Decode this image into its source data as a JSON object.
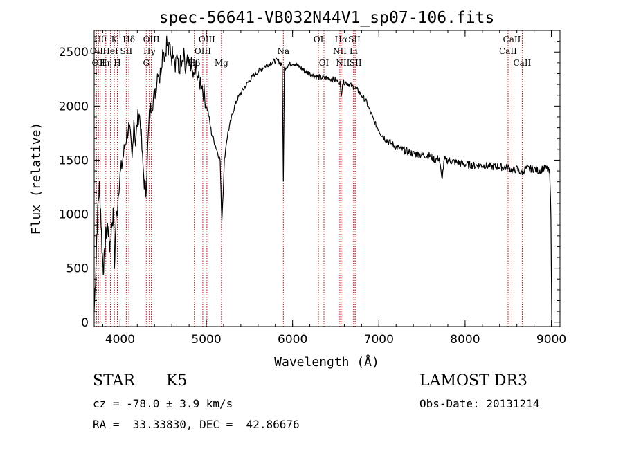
{
  "chart_data": {
    "type": "line",
    "title": "spec-56641-VB032N44V1_sp07-106.fits",
    "xlabel": "Wavelength (Å)",
    "ylabel": "Flux (relative)",
    "xlim": [
      3700,
      9100
    ],
    "ylim": [
      -40,
      2700
    ],
    "x_ticks": [
      4000,
      5000,
      6000,
      7000,
      8000,
      9000
    ],
    "y_ticks": [
      0,
      500,
      1000,
      1500,
      2000,
      2500
    ],
    "series": [
      {
        "name": "flux",
        "points": [
          [
            3700,
            100
          ],
          [
            3715,
            400
          ],
          [
            3730,
            800
          ],
          [
            3745,
            1100
          ],
          [
            3760,
            1250
          ],
          [
            3775,
            1050
          ],
          [
            3790,
            700
          ],
          [
            3805,
            500
          ],
          [
            3820,
            600
          ],
          [
            3835,
            800
          ],
          [
            3850,
            900
          ],
          [
            3865,
            850
          ],
          [
            3880,
            700
          ],
          [
            3895,
            820
          ],
          [
            3910,
            950
          ],
          [
            3925,
            1000
          ],
          [
            3935,
            500
          ],
          [
            3950,
            900
          ],
          [
            3968,
            1050
          ],
          [
            3985,
            1250
          ],
          [
            4000,
            1350
          ],
          [
            4020,
            1450
          ],
          [
            4040,
            1550
          ],
          [
            4060,
            1650
          ],
          [
            4080,
            1750
          ],
          [
            4100,
            1800
          ],
          [
            4120,
            1700
          ],
          [
            4140,
            1500
          ],
          [
            4160,
            1900
          ],
          [
            4180,
            1650
          ],
          [
            4200,
            1850
          ],
          [
            4220,
            1950
          ],
          [
            4240,
            1800
          ],
          [
            4260,
            1500
          ],
          [
            4280,
            1300
          ],
          [
            4300,
            1200
          ],
          [
            4320,
            1600
          ],
          [
            4340,
            1900
          ],
          [
            4360,
            2000
          ],
          [
            4380,
            2050
          ],
          [
            4400,
            2100
          ],
          [
            4420,
            2200
          ],
          [
            4440,
            2350
          ],
          [
            4460,
            2250
          ],
          [
            4480,
            2400
          ],
          [
            4500,
            2550
          ],
          [
            4520,
            2450
          ],
          [
            4540,
            2600
          ],
          [
            4560,
            2500
          ],
          [
            4580,
            2550
          ],
          [
            4600,
            2450
          ],
          [
            4620,
            2550
          ],
          [
            4640,
            2400
          ],
          [
            4660,
            2500
          ],
          [
            4680,
            2300
          ],
          [
            4700,
            2400
          ],
          [
            4720,
            2350
          ],
          [
            4740,
            2450
          ],
          [
            4760,
            2300
          ],
          [
            4780,
            2400
          ],
          [
            4800,
            2350
          ],
          [
            4820,
            2400
          ],
          [
            4840,
            2300
          ],
          [
            4860,
            2250
          ],
          [
            4880,
            2350
          ],
          [
            4900,
            2300
          ],
          [
            4920,
            2200
          ],
          [
            4940,
            2250
          ],
          [
            4960,
            2150
          ],
          [
            4980,
            2100
          ],
          [
            5000,
            2000
          ],
          [
            5020,
            1950
          ],
          [
            5040,
            1850
          ],
          [
            5060,
            1750
          ],
          [
            5080,
            1700
          ],
          [
            5100,
            1650
          ],
          [
            5120,
            1600
          ],
          [
            5140,
            1550
          ],
          [
            5160,
            1500
          ],
          [
            5170,
            1200
          ],
          [
            5180,
            950
          ],
          [
            5195,
            1200
          ],
          [
            5210,
            1500
          ],
          [
            5230,
            1650
          ],
          [
            5250,
            1750
          ],
          [
            5280,
            1850
          ],
          [
            5310,
            1950
          ],
          [
            5350,
            2050
          ],
          [
            5400,
            2120
          ],
          [
            5450,
            2180
          ],
          [
            5500,
            2240
          ],
          [
            5550,
            2280
          ],
          [
            5600,
            2320
          ],
          [
            5650,
            2350
          ],
          [
            5700,
            2380
          ],
          [
            5750,
            2400
          ],
          [
            5800,
            2420
          ],
          [
            5850,
            2410
          ],
          [
            5880,
            2380
          ],
          [
            5893,
            1300
          ],
          [
            5905,
            2350
          ],
          [
            5950,
            2380
          ],
          [
            6000,
            2400
          ],
          [
            6050,
            2380
          ],
          [
            6100,
            2350
          ],
          [
            6150,
            2320
          ],
          [
            6200,
            2300
          ],
          [
            6250,
            2280
          ],
          [
            6300,
            2270
          ],
          [
            6350,
            2260
          ],
          [
            6400,
            2260
          ],
          [
            6450,
            2250
          ],
          [
            6500,
            2240
          ],
          [
            6550,
            2220
          ],
          [
            6563,
            2080
          ],
          [
            6580,
            2220
          ],
          [
            6620,
            2220
          ],
          [
            6660,
            2200
          ],
          [
            6700,
            2180
          ],
          [
            6750,
            2150
          ],
          [
            6800,
            2100
          ],
          [
            6850,
            2050
          ],
          [
            6900,
            1950
          ],
          [
            6950,
            1850
          ],
          [
            7000,
            1780
          ],
          [
            7050,
            1720
          ],
          [
            7100,
            1680
          ],
          [
            7150,
            1650
          ],
          [
            7200,
            1620
          ],
          [
            7300,
            1590
          ],
          [
            7400,
            1560
          ],
          [
            7500,
            1550
          ],
          [
            7600,
            1540
          ],
          [
            7650,
            1500
          ],
          [
            7700,
            1520
          ],
          [
            7730,
            1320
          ],
          [
            7760,
            1500
          ],
          [
            7800,
            1500
          ],
          [
            7900,
            1480
          ],
          [
            8000,
            1460
          ],
          [
            8100,
            1450
          ],
          [
            8200,
            1450
          ],
          [
            8300,
            1440
          ],
          [
            8400,
            1440
          ],
          [
            8500,
            1430
          ],
          [
            8550,
            1400
          ],
          [
            8600,
            1420
          ],
          [
            8650,
            1380
          ],
          [
            8700,
            1420
          ],
          [
            8800,
            1420
          ],
          [
            8850,
            1400
          ],
          [
            8900,
            1420
          ],
          [
            8950,
            1420
          ],
          [
            8980,
            1380
          ],
          [
            8995,
            1000
          ],
          [
            9000,
            500
          ],
          [
            9005,
            -20
          ]
        ]
      }
    ],
    "line_markers": [
      {
        "wavelength": 3727,
        "label": "OII",
        "row": 1
      },
      {
        "wavelength": 3750,
        "label": "OII",
        "row": 2
      },
      {
        "wavelength": 3770,
        "label": "Hθ",
        "row": 0
      },
      {
        "wavelength": 3835,
        "label": "Hη",
        "row": 2
      },
      {
        "wavelength": 3889,
        "label": "HeI",
        "row": 1
      },
      {
        "wavelength": 3934,
        "label": "K",
        "row": 0
      },
      {
        "wavelength": 3969,
        "label": "H",
        "row": 2
      },
      {
        "wavelength": 4072,
        "label": "SII",
        "row": 1
      },
      {
        "wavelength": 4102,
        "label": "Hδ",
        "row": 0
      },
      {
        "wavelength": 4304,
        "label": "G",
        "row": 2
      },
      {
        "wavelength": 4340,
        "label": "Hγ",
        "row": 1
      },
      {
        "wavelength": 4363,
        "label": "OIII",
        "row": 0
      },
      {
        "wavelength": 4861,
        "label": "Hβ",
        "row": 2
      },
      {
        "wavelength": 4959,
        "label": "OIII",
        "row": 1
      },
      {
        "wavelength": 5007,
        "label": "OIII",
        "row": 0
      },
      {
        "wavelength": 5175,
        "label": "Mg",
        "row": 2
      },
      {
        "wavelength": 5893,
        "label": "Na",
        "row": 1
      },
      {
        "wavelength": 6300,
        "label": "OI",
        "row": 0
      },
      {
        "wavelength": 6364,
        "label": "OI",
        "row": 2
      },
      {
        "wavelength": 6548,
        "label": "NII",
        "row": 1
      },
      {
        "wavelength": 6563,
        "label": "Hα",
        "row": 0
      },
      {
        "wavelength": 6584,
        "label": "NII",
        "row": 2
      },
      {
        "wavelength": 6707,
        "label": "Li",
        "row": 1
      },
      {
        "wavelength": 6717,
        "label": "SII",
        "row": 0
      },
      {
        "wavelength": 6731,
        "label": "SII",
        "row": 2
      },
      {
        "wavelength": 8498,
        "label": "CaII",
        "row": 1
      },
      {
        "wavelength": 8542,
        "label": "CaII",
        "row": 0
      },
      {
        "wavelength": 8662,
        "label": "CaII",
        "row": 2
      }
    ],
    "marker_color": "#b01010",
    "grid": false,
    "legend": "none"
  },
  "info": {
    "object_class": "STAR",
    "subclass": "K5",
    "survey": "LAMOST DR3",
    "redshift": "cz = -78.0 ± 3.9 km/s",
    "obs_date": "Obs-Date: 20131214",
    "coords": "RA =  33.33830, DEC =  42.86676"
  }
}
